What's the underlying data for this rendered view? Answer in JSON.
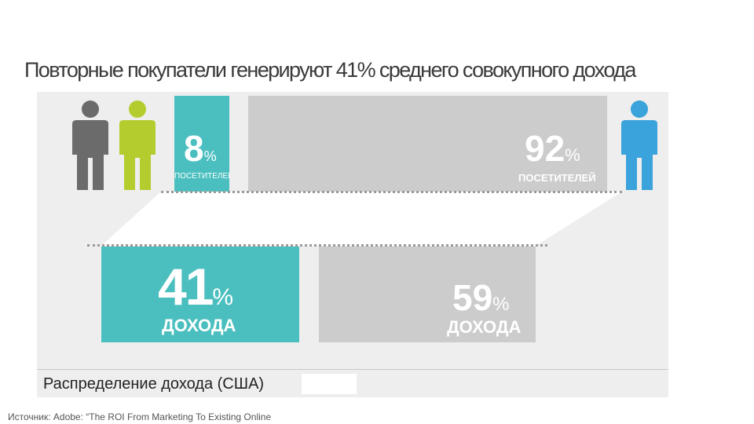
{
  "title": "Повторные покупатели генерируют 41% среднего совокупного дохода",
  "colors": {
    "teal": "#4bbfbf",
    "gray_box": "#cccccc",
    "person_dark": "#6b6b6b",
    "person_green": "#b5cc2e",
    "person_blue": "#3aa3db"
  },
  "icons": [
    "person-icon",
    "person-icon",
    "person-icon"
  ],
  "visitors": {
    "repeat": {
      "value": "8",
      "unit": "%",
      "label": "ПОСЕТИТЕЛЕЙ"
    },
    "other": {
      "value": "92",
      "unit": "%",
      "label": "ПОСЕТИТЕЛЕЙ"
    }
  },
  "revenue": {
    "repeat": {
      "value": "41",
      "unit": "%",
      "label": "ДОХОДА"
    },
    "other": {
      "value": "59",
      "unit": "%",
      "label": "ДОХОДА"
    }
  },
  "footer": "Распределение дохода (США)",
  "source": "Источник: Adobe: “The ROI From Marketing To Existing Online"
}
